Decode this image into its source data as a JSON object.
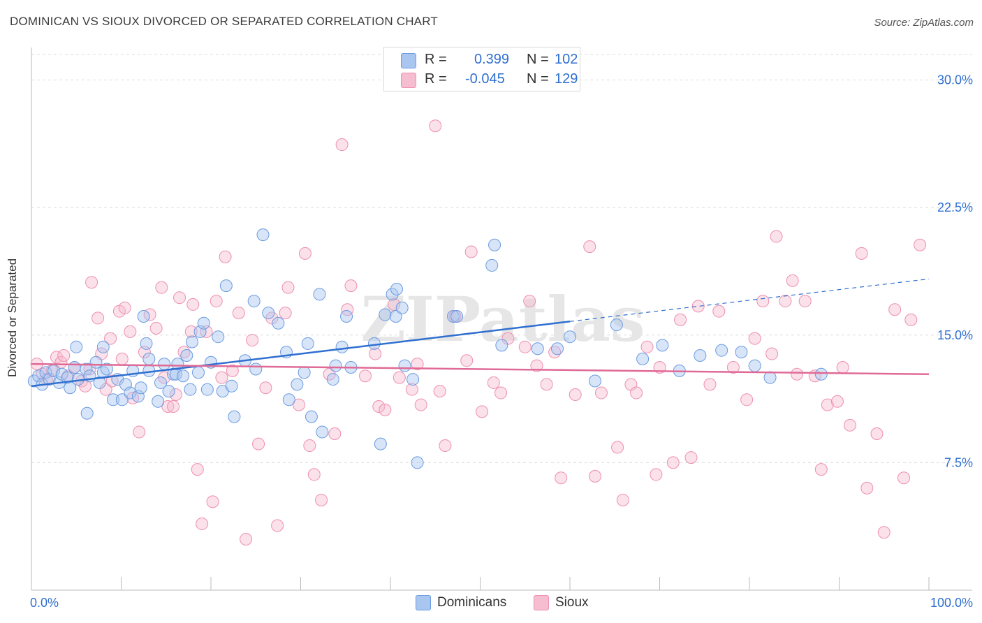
{
  "header": {
    "title": "DOMINICAN VS SIOUX DIVORCED OR SEPARATED CORRELATION CHART",
    "source": "Source: ZipAtlas.com"
  },
  "watermark": "ZIPatlas",
  "colors": {
    "blue_fill": "#a8c6f0",
    "blue_stroke": "#6b9be0",
    "blue_line": "#2f6fd0",
    "pink_fill": "#f6bcd0",
    "pink_stroke": "#ee8fb0",
    "pink_line": "#e06a96",
    "grid": "#dcdcdc",
    "axis_text": "#2f6fd0"
  },
  "legend": {
    "rows": [
      {
        "r_label": "R =",
        "r_value": "0.399",
        "n_label": "N =",
        "n_value": "102"
      },
      {
        "r_label": "R =",
        "r_value": "-0.045",
        "n_label": "N =",
        "n_value": "129"
      }
    ]
  },
  "bottom_legend": [
    {
      "label": "Dominicans"
    },
    {
      "label": "Sioux"
    }
  ],
  "chart_data": {
    "type": "scatter",
    "title": "DOMINICAN VS SIOUX DIVORCED OR SEPARATED CORRELATION CHART",
    "xlabel": "",
    "ylabel": "Divorced or Separated",
    "xlim": [
      0,
      100
    ],
    "ylim": [
      0,
      31.5
    ],
    "x_tick_labels": [
      "0.0%",
      "100.0%"
    ],
    "y_ticks": [
      7.5,
      15.0,
      22.5,
      30.0
    ],
    "y_tick_labels": [
      "7.5%",
      "15.0%",
      "22.5%",
      "30.0%"
    ],
    "grid": true,
    "legend_placement": "top-center",
    "series": [
      {
        "name": "Dominicans",
        "color": "#a8c6f0",
        "trend": {
          "x0": 0,
          "y0": 12.0,
          "x1": 60,
          "y1": 15.8,
          "dashed_to_x": 100,
          "dashed_to_y": 18.3
        },
        "points": [
          [
            0.3,
            12.3
          ],
          [
            0.8,
            12.6
          ],
          [
            1.2,
            12.1
          ],
          [
            1.6,
            12.8
          ],
          [
            2.0,
            12.4
          ],
          [
            2.5,
            12.9
          ],
          [
            3.1,
            12.2
          ],
          [
            3.4,
            12.7
          ],
          [
            4.0,
            12.5
          ],
          [
            4.3,
            11.9
          ],
          [
            4.8,
            13.1
          ],
          [
            5.2,
            12.4
          ],
          [
            5.0,
            14.3
          ],
          [
            6.1,
            13.0
          ],
          [
            6.5,
            12.6
          ],
          [
            6.2,
            10.4
          ],
          [
            7.2,
            13.4
          ],
          [
            7.6,
            12.2
          ],
          [
            8.0,
            12.8
          ],
          [
            8.4,
            13.0
          ],
          [
            8.0,
            14.3
          ],
          [
            9.1,
            11.2
          ],
          [
            9.6,
            12.4
          ],
          [
            10.1,
            11.2
          ],
          [
            10.5,
            12.1
          ],
          [
            11.0,
            11.6
          ],
          [
            11.3,
            12.9
          ],
          [
            11.9,
            11.4
          ],
          [
            12.2,
            11.9
          ],
          [
            12.5,
            16.1
          ],
          [
            12.8,
            14.5
          ],
          [
            13.1,
            12.9
          ],
          [
            13.1,
            13.6
          ],
          [
            14.1,
            11.1
          ],
          [
            14.4,
            12.2
          ],
          [
            14.8,
            13.3
          ],
          [
            15.3,
            11.7
          ],
          [
            15.8,
            12.7
          ],
          [
            16.1,
            12.7
          ],
          [
            16.3,
            13.3
          ],
          [
            16.9,
            12.6
          ],
          [
            17.3,
            13.8
          ],
          [
            17.7,
            11.8
          ],
          [
            17.9,
            14.6
          ],
          [
            18.6,
            12.8
          ],
          [
            18.8,
            15.2
          ],
          [
            19.2,
            15.7
          ],
          [
            19.6,
            11.8
          ],
          [
            20.0,
            13.4
          ],
          [
            20.8,
            14.9
          ],
          [
            21.3,
            11.7
          ],
          [
            21.7,
            17.9
          ],
          [
            22.3,
            12.0
          ],
          [
            22.6,
            10.2
          ],
          [
            23.8,
            13.5
          ],
          [
            24.8,
            17.0
          ],
          [
            25.0,
            13.0
          ],
          [
            25.8,
            20.9
          ],
          [
            26.4,
            16.3
          ],
          [
            27.5,
            15.7
          ],
          [
            28.4,
            14.0
          ],
          [
            28.7,
            11.2
          ],
          [
            29.6,
            12.1
          ],
          [
            30.4,
            12.8
          ],
          [
            30.8,
            14.5
          ],
          [
            31.2,
            10.2
          ],
          [
            32.1,
            17.4
          ],
          [
            32.4,
            9.3
          ],
          [
            33.6,
            12.4
          ],
          [
            33.9,
            13.2
          ],
          [
            34.6,
            14.3
          ],
          [
            35.1,
            16.1
          ],
          [
            35.6,
            13.1
          ],
          [
            38.2,
            14.5
          ],
          [
            38.9,
            8.6
          ],
          [
            39.4,
            16.2
          ],
          [
            40.2,
            17.4
          ],
          [
            40.6,
            16.1
          ],
          [
            40.7,
            17.7
          ],
          [
            41.3,
            16.6
          ],
          [
            41.6,
            13.2
          ],
          [
            42.5,
            12.4
          ],
          [
            43.0,
            7.5
          ],
          [
            47.0,
            16.1
          ],
          [
            47.4,
            16.1
          ],
          [
            51.3,
            19.1
          ],
          [
            51.6,
            20.3
          ],
          [
            52.4,
            14.4
          ],
          [
            56.4,
            14.2
          ],
          [
            58.6,
            14.2
          ],
          [
            60.0,
            14.9
          ],
          [
            62.8,
            12.3
          ],
          [
            65.2,
            15.6
          ],
          [
            68.1,
            13.6
          ],
          [
            70.3,
            14.4
          ],
          [
            72.2,
            12.9
          ],
          [
            74.5,
            13.8
          ],
          [
            76.9,
            14.1
          ],
          [
            79.1,
            14.0
          ],
          [
            80.6,
            13.2
          ],
          [
            82.3,
            12.5
          ],
          [
            88.0,
            12.7
          ]
        ]
      },
      {
        "name": "Sioux",
        "color": "#f6bcd0",
        "trend": {
          "x0": 0,
          "y0": 13.3,
          "x1": 100,
          "y1": 12.7
        },
        "points": [
          [
            0.6,
            13.3
          ],
          [
            1.2,
            12.7
          ],
          [
            1.7,
            12.4
          ],
          [
            2.3,
            12.9
          ],
          [
            2.8,
            13.7
          ],
          [
            3.3,
            13.4
          ],
          [
            3.6,
            13.8
          ],
          [
            4.1,
            12.6
          ],
          [
            4.8,
            13.1
          ],
          [
            5.6,
            12.3
          ],
          [
            6.0,
            12.0
          ],
          [
            6.5,
            13.0
          ],
          [
            6.7,
            18.1
          ],
          [
            7.4,
            16.0
          ],
          [
            7.8,
            13.9
          ],
          [
            8.3,
            11.8
          ],
          [
            8.8,
            14.8
          ],
          [
            9.0,
            12.3
          ],
          [
            9.8,
            16.4
          ],
          [
            10.1,
            13.6
          ],
          [
            10.4,
            16.6
          ],
          [
            11.0,
            15.2
          ],
          [
            11.3,
            11.3
          ],
          [
            12.0,
            9.3
          ],
          [
            12.6,
            14.0
          ],
          [
            13.2,
            16.2
          ],
          [
            13.9,
            15.4
          ],
          [
            14.5,
            17.8
          ],
          [
            14.8,
            12.5
          ],
          [
            15.2,
            10.8
          ],
          [
            15.8,
            10.8
          ],
          [
            16.1,
            11.5
          ],
          [
            16.5,
            17.2
          ],
          [
            17.0,
            14.0
          ],
          [
            17.8,
            15.2
          ],
          [
            18.0,
            16.8
          ],
          [
            18.5,
            7.1
          ],
          [
            19.0,
            3.9
          ],
          [
            19.5,
            15.2
          ],
          [
            20.2,
            5.2
          ],
          [
            20.6,
            17.0
          ],
          [
            21.2,
            12.5
          ],
          [
            21.6,
            19.6
          ],
          [
            22.4,
            12.9
          ],
          [
            23.1,
            16.3
          ],
          [
            23.9,
            3.0
          ],
          [
            24.6,
            14.7
          ],
          [
            25.3,
            8.6
          ],
          [
            26.1,
            11.9
          ],
          [
            26.8,
            16.0
          ],
          [
            27.4,
            3.8
          ],
          [
            28.3,
            16.3
          ],
          [
            28.6,
            17.8
          ],
          [
            29.8,
            10.9
          ],
          [
            30.5,
            19.8
          ],
          [
            31.0,
            8.5
          ],
          [
            31.5,
            6.8
          ],
          [
            32.3,
            5.3
          ],
          [
            33.2,
            12.7
          ],
          [
            33.8,
            9.2
          ],
          [
            34.6,
            26.2
          ],
          [
            35.2,
            16.5
          ],
          [
            35.6,
            17.9
          ],
          [
            37.2,
            12.6
          ],
          [
            38.3,
            13.9
          ],
          [
            38.7,
            10.8
          ],
          [
            39.4,
            10.6
          ],
          [
            40.4,
            16.8
          ],
          [
            41.0,
            12.5
          ],
          [
            42.4,
            11.8
          ],
          [
            43.0,
            13.3
          ],
          [
            43.4,
            10.9
          ],
          [
            45.0,
            27.3
          ],
          [
            45.5,
            11.7
          ],
          [
            46.1,
            8.5
          ],
          [
            47.2,
            16.1
          ],
          [
            48.5,
            13.5
          ],
          [
            49.0,
            19.9
          ],
          [
            50.2,
            10.5
          ],
          [
            51.5,
            12.2
          ],
          [
            52.3,
            11.6
          ],
          [
            53.1,
            14.8
          ],
          [
            55.0,
            14.3
          ],
          [
            55.5,
            17.0
          ],
          [
            56.3,
            13.2
          ],
          [
            57.4,
            12.1
          ],
          [
            58.3,
            14.0
          ],
          [
            59.0,
            6.6
          ],
          [
            60.6,
            11.5
          ],
          [
            62.2,
            20.2
          ],
          [
            62.8,
            6.7
          ],
          [
            63.5,
            11.6
          ],
          [
            65.3,
            8.4
          ],
          [
            65.9,
            5.3
          ],
          [
            66.8,
            12.1
          ],
          [
            67.4,
            11.6
          ],
          [
            68.6,
            14.3
          ],
          [
            69.6,
            6.8
          ],
          [
            70.0,
            13.1
          ],
          [
            71.5,
            7.5
          ],
          [
            72.3,
            15.9
          ],
          [
            73.5,
            7.8
          ],
          [
            74.3,
            16.7
          ],
          [
            75.6,
            12.1
          ],
          [
            76.6,
            16.4
          ],
          [
            78.2,
            13.1
          ],
          [
            79.7,
            11.2
          ],
          [
            80.6,
            14.8
          ],
          [
            81.5,
            17.0
          ],
          [
            82.5,
            13.9
          ],
          [
            83.0,
            20.8
          ],
          [
            84.0,
            17.0
          ],
          [
            84.8,
            18.2
          ],
          [
            85.3,
            12.7
          ],
          [
            86.2,
            17.0
          ],
          [
            87.3,
            12.6
          ],
          [
            88.0,
            7.1
          ],
          [
            88.7,
            10.9
          ],
          [
            89.8,
            11.1
          ],
          [
            90.4,
            13.1
          ],
          [
            91.2,
            9.7
          ],
          [
            92.5,
            19.8
          ],
          [
            93.1,
            6.0
          ],
          [
            94.2,
            9.2
          ],
          [
            95.0,
            3.4
          ],
          [
            96.2,
            16.5
          ],
          [
            97.2,
            6.6
          ],
          [
            98.0,
            15.9
          ],
          [
            99.0,
            20.3
          ]
        ]
      }
    ]
  }
}
